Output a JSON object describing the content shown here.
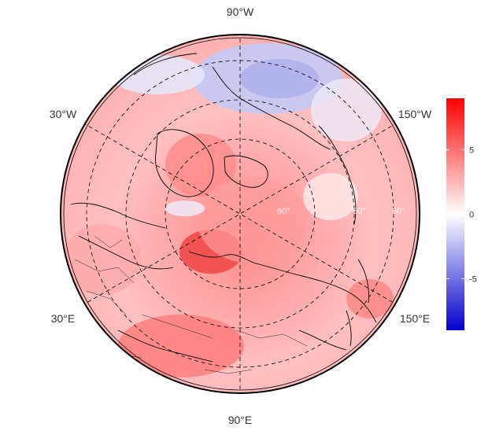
{
  "map": {
    "projection": "north polar stereographic",
    "longitude_labels": {
      "top": "90°W",
      "upper_left": "30°W",
      "upper_right": "150°W",
      "lower_left": "30°E",
      "lower_right": "150°E",
      "bottom": "90°E"
    },
    "latitude_labels": [
      "60°",
      "50°",
      "50°"
    ],
    "grid": "dashed",
    "coastlines": true,
    "country_borders": true
  },
  "colorbar": {
    "ticks": [
      "5",
      "0",
      "-5"
    ],
    "tick_values": [
      5,
      0,
      -5
    ],
    "range": [
      -9,
      9
    ],
    "colors": {
      "high": "#ff0000",
      "mid": "#ffffff",
      "low": "#0000cc"
    }
  },
  "chart_data": {
    "type": "heatmap",
    "title": "",
    "value_range": [
      -9,
      9
    ],
    "pattern": "mostly warm anomalies (+1 to +9), cool anomalies (-1 to -4) over northern Canada / Arctic Ocean near 90°W–150°W, strongest warm anomaly over northern Eurasia near 60°E–90°E"
  }
}
